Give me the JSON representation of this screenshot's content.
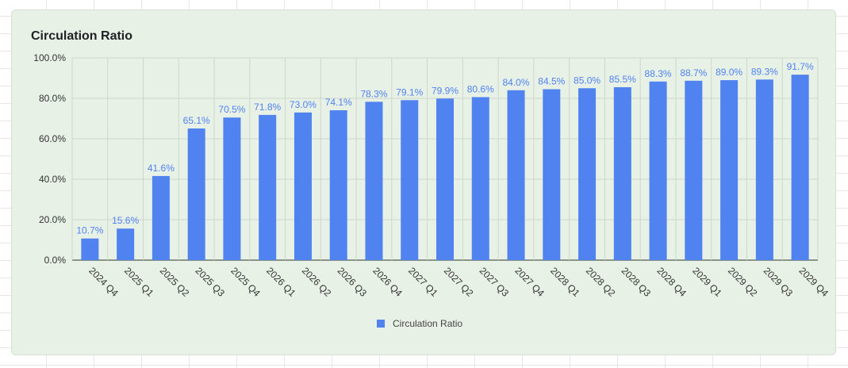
{
  "chart_data": {
    "type": "bar",
    "title": "Circulation Ratio",
    "xlabel": "",
    "ylabel": "",
    "ylim": [
      0,
      100
    ],
    "yticks": [
      "0.0%",
      "20.0%",
      "40.0%",
      "60.0%",
      "80.0%",
      "100.0%"
    ],
    "ytick_values": [
      0,
      20,
      40,
      60,
      80,
      100
    ],
    "categories": [
      "2024 Q4",
      "2025 Q1",
      "2025 Q2",
      "2025 Q3",
      "2025 Q4",
      "2026 Q1",
      "2026 Q2",
      "2026 Q3",
      "2026 Q4",
      "2027 Q1",
      "2027 Q2",
      "2027 Q3",
      "2027 Q4",
      "2028 Q1",
      "2028 Q2",
      "2028 Q3",
      "2028 Q4",
      "2029 Q1",
      "2029 Q2",
      "2029 Q3",
      "2029 Q4"
    ],
    "series": [
      {
        "name": "Circulation Ratio",
        "color": "#5082f0",
        "values": [
          10.7,
          15.6,
          41.6,
          65.1,
          70.5,
          71.8,
          73.0,
          74.1,
          78.3,
          79.1,
          79.9,
          80.6,
          84.0,
          84.5,
          85.0,
          85.5,
          88.3,
          88.7,
          89.0,
          89.3,
          91.7
        ],
        "labels": [
          "10.7%",
          "15.6%",
          "41.6%",
          "65.1%",
          "70.5%",
          "71.8%",
          "73.0%",
          "74.1%",
          "78.3%",
          "79.1%",
          "79.9%",
          "80.6%",
          "84.0%",
          "84.5%",
          "85.0%",
          "85.5%",
          "88.3%",
          "88.7%",
          "89.0%",
          "89.3%",
          "91.7%"
        ]
      }
    ],
    "grid": true,
    "legend_position": "bottom",
    "colors": {
      "bar": "#5082f0",
      "data_label": "#5082f0",
      "grid": "#d0d6ce",
      "axis_text": "#333333",
      "card_bg": "#e8f1e6"
    }
  }
}
